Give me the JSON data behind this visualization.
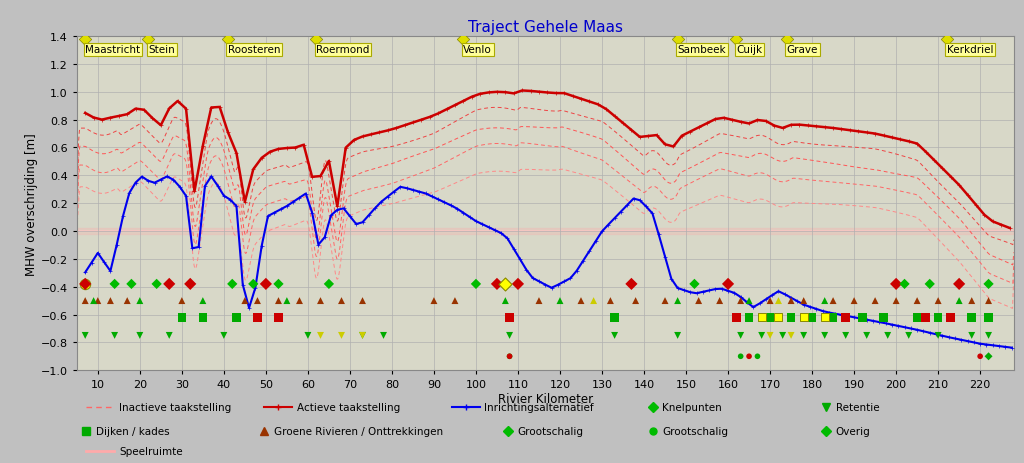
{
  "title": "Traject Gehele Maas",
  "xlabel": "Rivier Kilometer",
  "ylabel": "MHW overschrijding [m]",
  "xlim": [
    5,
    228
  ],
  "ylim": [
    -1.0,
    1.4
  ],
  "yticks": [
    -1.0,
    -0.8,
    -0.6,
    -0.4,
    -0.2,
    0.0,
    0.2,
    0.4,
    0.6,
    0.8,
    1.0,
    1.2,
    1.4
  ],
  "xticks": [
    10,
    20,
    30,
    40,
    50,
    60,
    70,
    80,
    90,
    100,
    110,
    120,
    130,
    140,
    150,
    160,
    170,
    180,
    190,
    200,
    210,
    220
  ],
  "bg_color": "#C0C0C0",
  "plot_bg": "#D8D8C8",
  "grid_color": "#B0B0B0",
  "zero_line_color": "#FFCCCC",
  "city_label_bg": "#FFFF99",
  "city_label_border": "#AAAA00",
  "cities": [
    {
      "name": "Maastricht",
      "x": 7
    },
    {
      "name": "Stein",
      "x": 22
    },
    {
      "name": "Roosteren",
      "x": 41
    },
    {
      "name": "Roermond",
      "x": 62
    },
    {
      "name": "Venlo",
      "x": 97
    },
    {
      "name": "Sambeek",
      "x": 148
    },
    {
      "name": "Cuijk",
      "x": 162
    },
    {
      "name": "Grave",
      "x": 174
    },
    {
      "name": "Kerkdriel",
      "x": 212
    }
  ],
  "city_diamonds": [
    7,
    22,
    41,
    62,
    97,
    148,
    162,
    174,
    212
  ]
}
